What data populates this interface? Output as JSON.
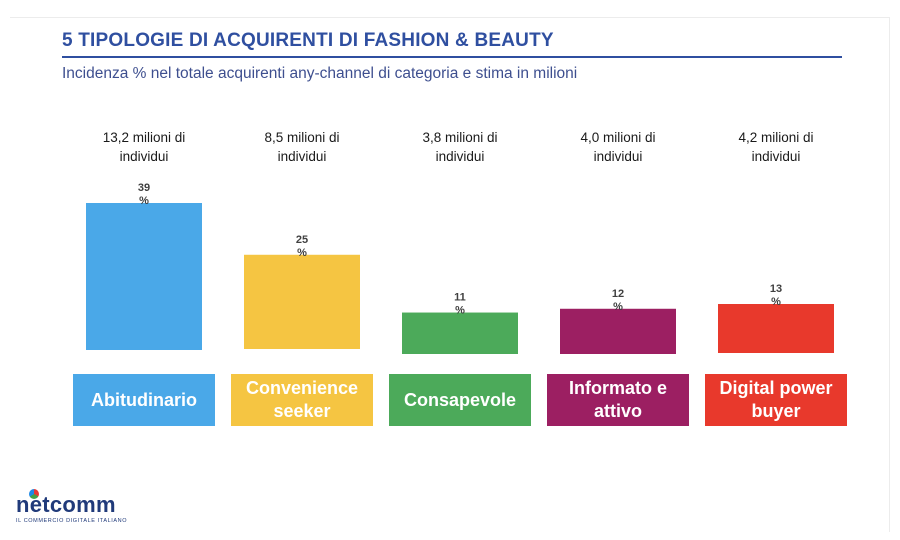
{
  "header": {
    "title": "5 TIPOLOGIE DI ACQUIRENTI DI FASHION & BEAUTY",
    "subtitle": "Incidenza % nel totale acquirenti any-channel di categoria e stima in milioni"
  },
  "logo": {
    "name": "netcomm",
    "tagline": "IL COMMERCIO DIGITALE ITALIANO"
  },
  "chart_data": {
    "type": "bar",
    "title": "5 TIPOLOGIE DI ACQUIRENTI DI FASHION & BEAUTY",
    "subtitle": "Incidenza % nel totale acquirenti any-channel di categoria e stima in milioni",
    "categories": [
      "Abitudinario",
      "Convenience seeker",
      "Consapevole",
      "Informato e attivo",
      "Digital power buyer"
    ],
    "values": [
      39,
      25,
      11,
      12,
      13
    ],
    "value_labels": [
      "39\n%",
      "25\n%",
      "11\n%",
      "12\n%",
      "13\n%"
    ],
    "millions_labels": [
      "13,2 milioni di\nindividui",
      "8,5 milioni di\nindividui",
      "3,8 milioni di\nindividui",
      "4,0 milioni di\nindividui",
      "4,2 milioni di\nindividui"
    ],
    "category_labels": [
      "Abitudinario",
      "Convenience\nseeker",
      "Consapevole",
      "Informato e\nattivo",
      "Digital power\nbuyer"
    ],
    "colors": [
      "#4aa8e8",
      "#f5c542",
      "#4caa5a",
      "#9c1f62",
      "#e8392c"
    ],
    "xlabel": "",
    "ylabel": "",
    "ylim": [
      0,
      39
    ],
    "grid": false,
    "legend": "none"
  }
}
